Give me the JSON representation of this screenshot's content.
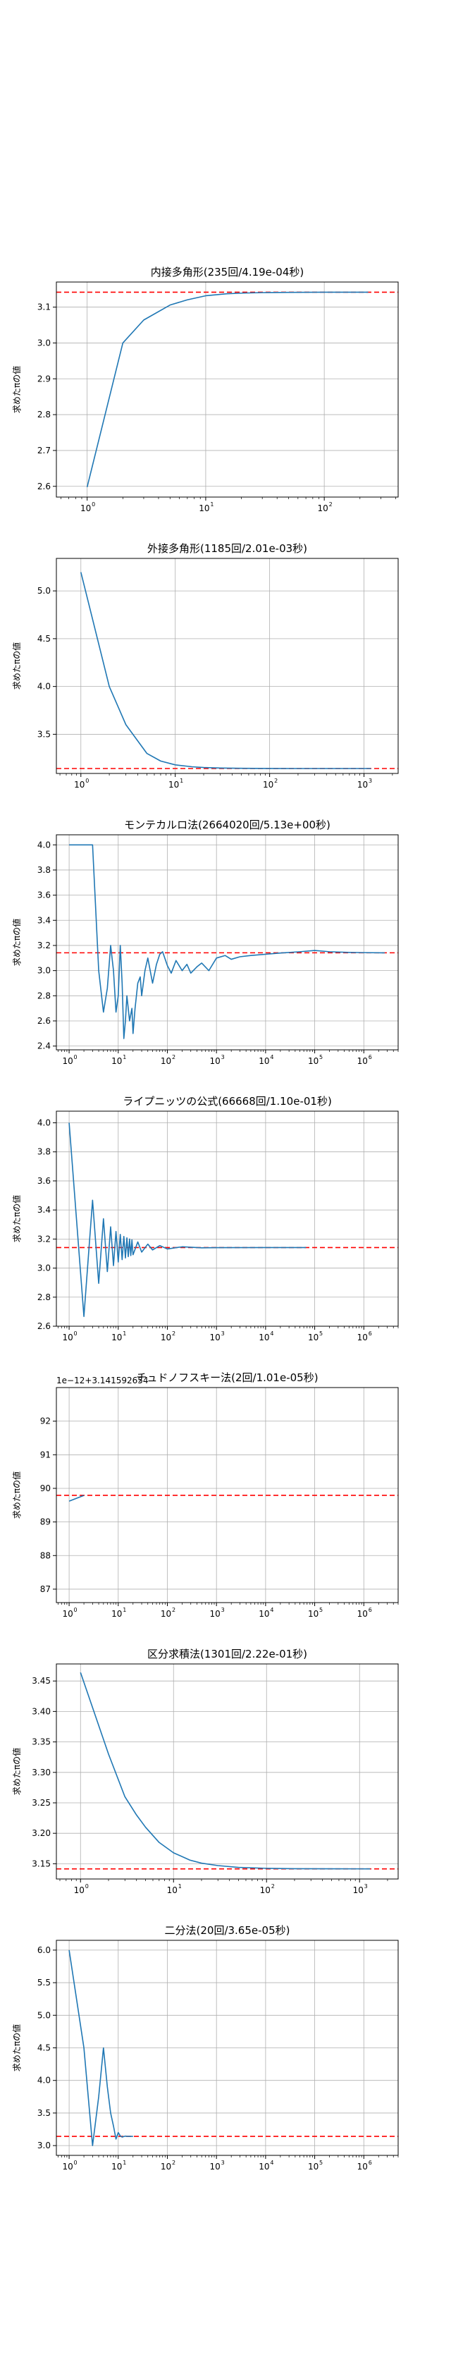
{
  "style": {
    "line_color": "#1f77b4",
    "reference_color": "#ff0000",
    "grid_color": "#b0b0b0",
    "background": "#ffffff"
  },
  "chart_data": [
    {
      "type": "line",
      "title": "内接多角形(235回/4.19e-04秒)",
      "ylabel": "求めたπの値",
      "xscale": "log",
      "xlim": [
        0.55,
        420
      ],
      "ylim": [
        2.57,
        3.17
      ],
      "yticks": [
        2.6,
        2.7,
        2.8,
        2.9,
        3.0,
        3.1
      ],
      "ytick_labels": [
        "2.6",
        "2.7",
        "2.8",
        "2.9",
        "3.0",
        "3.1"
      ],
      "grid": true,
      "reference_line": 3.141592653589793,
      "series": [
        {
          "x": [
            1,
            2,
            3,
            5,
            7,
            10,
            15,
            20,
            30,
            50,
            70,
            100,
            150,
            235
          ],
          "y": [
            2.598,
            3.0,
            3.064,
            3.1058,
            3.1203,
            3.1317,
            3.1371,
            3.139,
            3.1405,
            3.1412,
            3.1414,
            3.14156,
            3.14158,
            3.14159
          ]
        }
      ]
    },
    {
      "type": "line",
      "title": "外接多角形(1185回/2.01e-03秒)",
      "ylabel": "求めたπの値",
      "xscale": "log",
      "xlim": [
        0.55,
        2300
      ],
      "ylim": [
        3.09,
        5.34
      ],
      "yticks": [
        3.5,
        4.0,
        4.5,
        5.0
      ],
      "ytick_labels": [
        "3.5",
        "4.0",
        "4.5",
        "5.0"
      ],
      "grid": true,
      "reference_line": 3.141592653589793,
      "series": [
        {
          "x": [
            1,
            2,
            3,
            5,
            7,
            10,
            15,
            20,
            30,
            50,
            100,
            200,
            500,
            1185
          ],
          "y": [
            5.196,
            4.0,
            3.6,
            3.3,
            3.22,
            3.18,
            3.16,
            3.152,
            3.147,
            3.144,
            3.142,
            3.1416,
            3.14159,
            3.14159
          ]
        }
      ]
    },
    {
      "type": "line",
      "title": "モンテカルロ法(2664020回/5.13e+00秒)",
      "ylabel": "求めたπの値",
      "xscale": "log",
      "xlim": [
        0.55,
        5000000
      ],
      "ylim": [
        2.37,
        4.08
      ],
      "yticks": [
        2.4,
        2.6,
        2.8,
        3.0,
        3.2,
        3.4,
        3.6,
        3.8,
        4.0
      ],
      "ytick_labels": [
        "2.4",
        "2.6",
        "2.8",
        "3.0",
        "3.2",
        "3.4",
        "3.6",
        "3.8",
        "4.0"
      ],
      "grid": true,
      "reference_line": 3.141592653589793,
      "series": [
        {
          "x": [
            1,
            2,
            3,
            4,
            5,
            6,
            7,
            8,
            9,
            10,
            11,
            12,
            13,
            14,
            15,
            17,
            19,
            20,
            22,
            25,
            28,
            30,
            35,
            40,
            50,
            60,
            70,
            80,
            100,
            120,
            150,
            200,
            250,
            300,
            400,
            500,
            700,
            1000,
            1500,
            2000,
            3000,
            5000,
            10000,
            20000,
            50000,
            100000,
            200000,
            500000,
            1000000,
            2664020
          ],
          "y": [
            4.0,
            4.0,
            4.0,
            3.0,
            2.67,
            2.86,
            3.2,
            3.0,
            2.67,
            2.8,
            3.2,
            2.9,
            2.46,
            2.6,
            2.8,
            2.6,
            2.7,
            2.5,
            2.7,
            2.9,
            2.95,
            2.8,
            3.0,
            3.1,
            2.9,
            3.05,
            3.13,
            3.15,
            3.04,
            2.98,
            3.08,
            3.0,
            3.05,
            2.98,
            3.03,
            3.06,
            3.0,
            3.1,
            3.12,
            3.09,
            3.11,
            3.12,
            3.13,
            3.14,
            3.15,
            3.16,
            3.15,
            3.145,
            3.143,
            3.1415
          ]
        }
      ]
    },
    {
      "type": "line",
      "title": "ライプニッツの公式(66668回/1.10e-01秒)",
      "ylabel": "求めたπの値",
      "xscale": "log",
      "xlim": [
        0.55,
        5000000
      ],
      "ylim": [
        2.6,
        4.08
      ],
      "yticks": [
        2.6,
        2.8,
        3.0,
        3.2,
        3.4,
        3.6,
        3.8,
        4.0
      ],
      "ytick_labels": [
        "2.6",
        "2.8",
        "3.0",
        "3.2",
        "3.4",
        "3.6",
        "3.8",
        "4.0"
      ],
      "grid": true,
      "reference_line": 3.141592653589793,
      "series": [
        {
          "x": [
            1,
            2,
            3,
            4,
            5,
            6,
            7,
            8,
            9,
            10,
            11,
            12,
            13,
            14,
            15,
            16,
            17,
            18,
            19,
            20,
            25,
            30,
            40,
            50,
            70,
            100,
            200,
            500,
            1000,
            10000,
            66668
          ],
          "y": [
            4.0,
            2.667,
            3.467,
            2.895,
            3.34,
            2.976,
            3.284,
            3.017,
            3.252,
            3.042,
            3.232,
            3.058,
            3.218,
            3.07,
            3.208,
            3.079,
            3.2,
            3.086,
            3.194,
            3.092,
            3.18,
            3.11,
            3.165,
            3.125,
            3.155,
            3.1316,
            3.1466,
            3.1396,
            3.1406,
            3.1415,
            3.14159
          ]
        }
      ]
    },
    {
      "type": "line",
      "title": "チュドノフスキー法(2回/1.01e-05秒)",
      "ylabel": "求めたπの値",
      "offset_text": "1e−12+3.141592654",
      "xscale": "log",
      "xlim": [
        0.55,
        5000000
      ],
      "ylim": [
        86.6,
        93.0
      ],
      "yticks": [
        87,
        88,
        89,
        90,
        91,
        92
      ],
      "ytick_labels": [
        "87",
        "88",
        "89",
        "90",
        "91",
        "92"
      ],
      "grid": true,
      "reference_line": 89.793,
      "series": [
        {
          "x": [
            1,
            2
          ],
          "y": [
            89.62,
            89.79
          ]
        }
      ]
    },
    {
      "type": "line",
      "title": "区分求積法(1301回/2.22e-01秒)",
      "ylabel": "求めたπの値",
      "xscale": "log",
      "xlim": [
        0.55,
        2600
      ],
      "ylim": [
        3.125,
        3.478
      ],
      "yticks": [
        3.15,
        3.2,
        3.25,
        3.3,
        3.35,
        3.4,
        3.45
      ],
      "ytick_labels": [
        "3.15",
        "3.20",
        "3.25",
        "3.30",
        "3.35",
        "3.40",
        "3.45"
      ],
      "grid": true,
      "reference_line": 3.141592653589793,
      "series": [
        {
          "x": [
            1,
            2,
            3,
            4,
            5,
            7,
            10,
            15,
            20,
            30,
            50,
            100,
            200,
            500,
            1301
          ],
          "y": [
            3.464,
            3.33,
            3.26,
            3.23,
            3.21,
            3.185,
            3.168,
            3.156,
            3.151,
            3.147,
            3.144,
            3.1425,
            3.1419,
            3.1417,
            3.1416
          ]
        }
      ]
    },
    {
      "type": "line",
      "title": "二分法(20回/3.65e-05秒)",
      "ylabel": "求めたπの値",
      "xscale": "log",
      "xlim": [
        0.55,
        5000000
      ],
      "ylim": [
        2.85,
        6.15
      ],
      "yticks": [
        3.0,
        3.5,
        4.0,
        4.5,
        5.0,
        5.5,
        6.0
      ],
      "ytick_labels": [
        "3.0",
        "3.5",
        "4.0",
        "4.5",
        "5.0",
        "5.5",
        "6.0"
      ],
      "grid": true,
      "reference_line": 3.141592653589793,
      "series": [
        {
          "x": [
            1,
            2,
            3,
            4,
            5,
            6,
            7,
            8,
            9,
            10,
            11,
            12,
            13,
            14,
            15,
            16,
            17,
            18,
            19,
            20
          ],
          "y": [
            6.0,
            4.5,
            3.0,
            3.75,
            4.5,
            3.9,
            3.5,
            3.3,
            3.1,
            3.2,
            3.15,
            3.13,
            3.14,
            3.145,
            3.142,
            3.1415,
            3.1416,
            3.1416,
            3.1416,
            3.1416
          ]
        }
      ]
    }
  ],
  "xtick_labels": [
    "10",
    "0",
    "10",
    "1",
    "10",
    "2",
    "10",
    "3",
    "10",
    "4",
    "10",
    "5",
    "10",
    "6"
  ]
}
